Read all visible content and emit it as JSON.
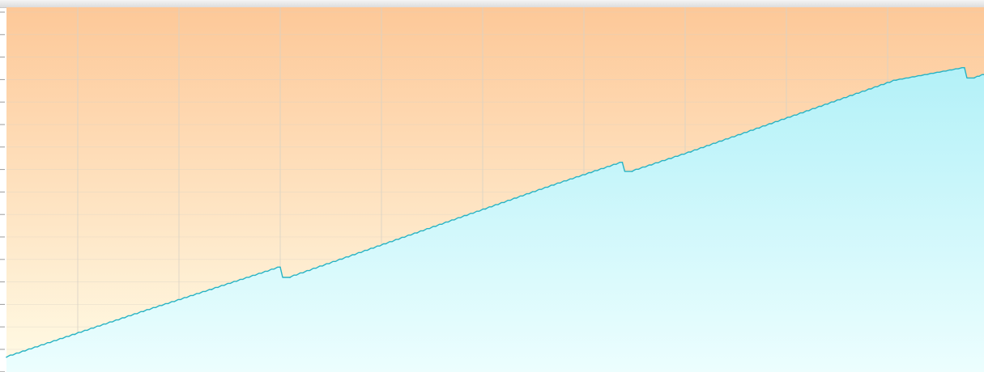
{
  "chart_data": {
    "type": "area",
    "title": "",
    "xlabel": "",
    "ylabel": "",
    "x_min": 0,
    "x_max": 1,
    "ylim": [
      0,
      16
    ],
    "grid": true,
    "legend": "none",
    "y_tick_labels": [
      "",
      "",
      "",
      "",
      "",
      "",
      "",
      "",
      "",
      "",
      "",
      "",
      "",
      "",
      "",
      ""
    ],
    "series": [
      {
        "x": [
          0,
          0.07,
          0.14,
          0.21,
          0.28,
          0.29,
          0.35,
          0.42,
          0.49,
          0.56,
          0.63,
          0.64,
          0.7,
          0.77,
          0.84,
          0.91,
          0.98,
          0.99,
          1.0
        ],
        "values": [
          0.65,
          1.65,
          2.65,
          3.62,
          4.6,
          4.15,
          5.05,
          6.1,
          7.15,
          8.2,
          9.2,
          8.8,
          9.65,
          10.7,
          11.75,
          12.8,
          13.35,
          12.9,
          13.05
        ]
      }
    ],
    "colors": {
      "background_top": "#fdc898",
      "background_bottom": "#fffbe6",
      "area_top": "#b3f1f8",
      "area_bottom": "#ecfefe",
      "line": "#27b3c4",
      "grid": "#d7d2c6"
    }
  }
}
